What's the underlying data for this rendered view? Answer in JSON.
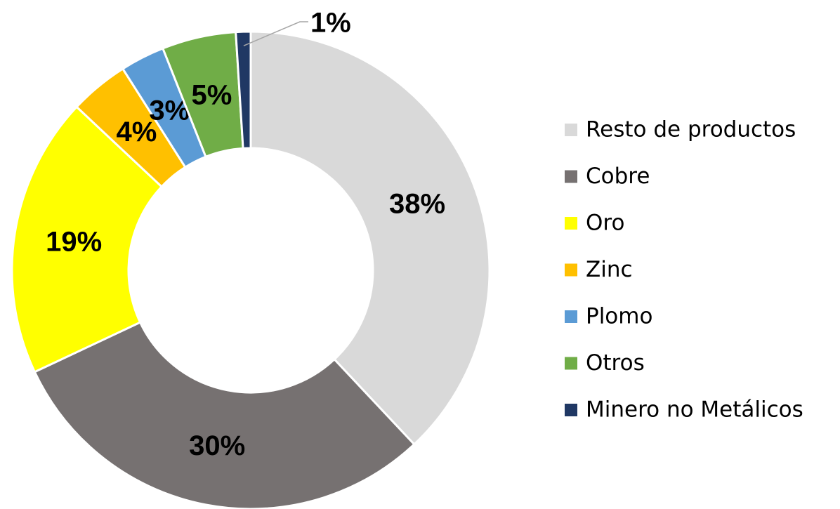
{
  "chart_data": {
    "type": "pie",
    "categories": [
      "Resto de productos",
      "Cobre",
      "Oro",
      "Zinc",
      "Plomo",
      "Otros",
      "Minero no Metálicos"
    ],
    "values": [
      38,
      30,
      19,
      4,
      3,
      5,
      1
    ],
    "value_labels": [
      "38%",
      "30%",
      "19%",
      "4%",
      "3%",
      "5%",
      "1%"
    ],
    "colors": [
      "#d9d9d9",
      "#767171",
      "#ffff00",
      "#ffc000",
      "#5b9bd5",
      "#70ad47",
      "#203864"
    ],
    "donut": true,
    "legend": "right"
  }
}
